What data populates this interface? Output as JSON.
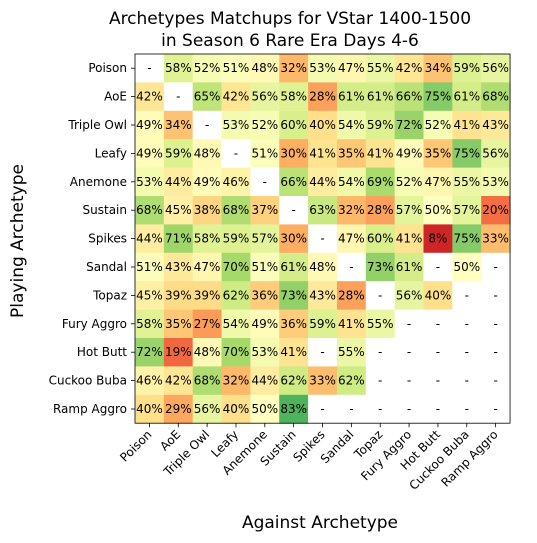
{
  "chart_data": {
    "type": "heatmap",
    "title_lines": [
      "Archetypes Matchups for VStar 1400-1500",
      "in Season 6 Rare Era Days 4-6"
    ],
    "xlabel": "Against Archetype",
    "ylabel": "Playing Archetype",
    "rows": [
      "Poison",
      "AoE",
      "Triple Owl",
      "Leafy",
      "Anemone",
      "Sustain",
      "Spikes",
      "Sandal",
      "Topaz",
      "Fury Aggro",
      "Hot Butt",
      "Cuckoo Buba",
      "Ramp Aggro"
    ],
    "columns": [
      "Poison",
      "AoE",
      "Triple Owl",
      "Leafy",
      "Anemone",
      "Sustain",
      "Spikes",
      "Sandal",
      "Topaz",
      "Fury Aggro",
      "Hot Butt",
      "Cuckoo Buba",
      "Ramp Aggro"
    ],
    "unit": "%",
    "missing_label": "-",
    "color_scale": {
      "low": "#d73027",
      "mid": "#ffffbf",
      "high": "#1a9850",
      "vmin": 0,
      "vmax": 100
    },
    "values": [
      [
        null,
        58,
        52,
        51,
        48,
        32,
        53,
        47,
        55,
        42,
        34,
        59,
        56
      ],
      [
        42,
        null,
        65,
        42,
        56,
        58,
        28,
        61,
        61,
        66,
        75,
        61,
        68
      ],
      [
        49,
        34,
        null,
        53,
        52,
        60,
        40,
        54,
        59,
        72,
        52,
        41,
        43
      ],
      [
        49,
        59,
        48,
        null,
        51,
        30,
        41,
        35,
        41,
        49,
        35,
        75,
        56
      ],
      [
        53,
        44,
        49,
        46,
        null,
        66,
        44,
        54,
        69,
        52,
        47,
        55,
        53
      ],
      [
        68,
        45,
        38,
        68,
        37,
        null,
        63,
        32,
        28,
        57,
        50,
        57,
        20
      ],
      [
        44,
        71,
        58,
        59,
        57,
        30,
        null,
        47,
        60,
        41,
        8,
        75,
        33
      ],
      [
        51,
        43,
        47,
        70,
        51,
        61,
        48,
        null,
        73,
        61,
        null,
        50,
        null
      ],
      [
        45,
        39,
        39,
        62,
        36,
        73,
        43,
        28,
        null,
        56,
        40,
        null,
        null
      ],
      [
        58,
        35,
        27,
        54,
        49,
        36,
        59,
        41,
        55,
        null,
        null,
        null,
        null
      ],
      [
        72,
        19,
        48,
        70,
        53,
        41,
        null,
        55,
        null,
        null,
        null,
        null,
        null
      ],
      [
        46,
        42,
        68,
        32,
        44,
        62,
        33,
        62,
        null,
        null,
        null,
        null,
        null
      ],
      [
        40,
        29,
        56,
        40,
        50,
        83,
        null,
        null,
        null,
        null,
        null,
        null,
        null
      ]
    ],
    "cell_labels": [
      [
        "-",
        "58%",
        "52%",
        "51%",
        "48%",
        "32%",
        "53%",
        "47%",
        "55%",
        "42%",
        "34%",
        "59%",
        "56%"
      ],
      [
        "42%",
        "-",
        "65%",
        "42%",
        "56%",
        "58%",
        "28%",
        "61%",
        "61%",
        "66%",
        "75%",
        "61%",
        "68%"
      ],
      [
        "49%",
        "34%",
        "-",
        "53%",
        "52%",
        "60%",
        "40%",
        "54%",
        "59%",
        "72%",
        "52%",
        "41%",
        "43%"
      ],
      [
        "49%",
        "59%",
        "48%",
        "-",
        "51%",
        "30%",
        "41%",
        "35%",
        "41%",
        "49%",
        "35%",
        "75%",
        "56%"
      ],
      [
        "53%",
        "44%",
        "49%",
        "46%",
        "-",
        "66%",
        "44%",
        "54%",
        "69%",
        "52%",
        "47%",
        "55%",
        "53%"
      ],
      [
        "68%",
        "45%",
        "38%",
        "68%",
        "37%",
        "-",
        "63%",
        "32%",
        "28%",
        "57%",
        "50%",
        "57%",
        "20%"
      ],
      [
        "44%",
        "71%",
        "58%",
        "59%",
        "57%",
        "30%",
        "-",
        "47%",
        "60%",
        "41%",
        "8%",
        "75%",
        "33%"
      ],
      [
        "51%",
        "43%",
        "47%",
        "70%",
        "51%",
        "61%",
        "48%",
        "-",
        "73%",
        "61%",
        "-",
        "50%",
        "-"
      ],
      [
        "45%",
        "39%",
        "39%",
        "62%",
        "36%",
        "73%",
        "43%",
        "28%",
        "-",
        "56%",
        "40%",
        "-",
        "-"
      ],
      [
        "58%",
        "35%",
        "27%",
        "54%",
        "49%",
        "36%",
        "59%",
        "41%",
        "55%",
        "-",
        "-",
        "-",
        "-"
      ],
      [
        "72%",
        "19%",
        "48%",
        "70%",
        "53%",
        "41%",
        "-",
        "55%",
        "-",
        "-",
        "-",
        "-",
        "-"
      ],
      [
        "46%",
        "42%",
        "68%",
        "32%",
        "44%",
        "62%",
        "33%",
        "62%",
        "-",
        "-",
        "-",
        "-",
        "-"
      ],
      [
        "40%",
        "29%",
        "56%",
        "40%",
        "50%",
        "83%",
        "-",
        "-",
        "-",
        "-",
        "-",
        "-",
        "-"
      ]
    ]
  }
}
